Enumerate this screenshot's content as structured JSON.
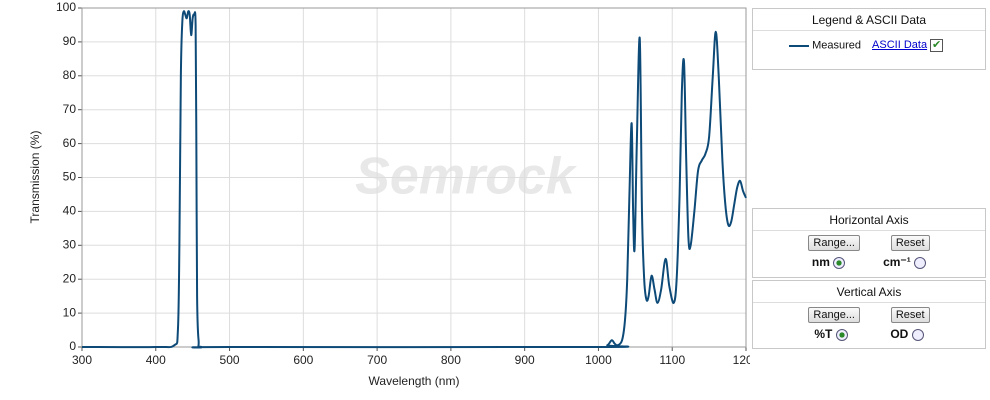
{
  "chart_data": {
    "type": "line",
    "x_label": "Wavelength (nm)",
    "y_label": "Transmission (%)",
    "watermark": "Semrock",
    "x": [
      300,
      400,
      425,
      430,
      432,
      434,
      436,
      438,
      440,
      442,
      444,
      446,
      448,
      450,
      452,
      454,
      455,
      456,
      458,
      462,
      500,
      1000,
      1012,
      1018,
      1022,
      1026,
      1032,
      1036,
      1039,
      1042,
      1045,
      1047,
      1049,
      1052,
      1056,
      1059,
      1062,
      1065,
      1068,
      1072,
      1076,
      1080,
      1085,
      1091,
      1096,
      1102,
      1106,
      1110,
      1113,
      1116,
      1119,
      1122,
      1125,
      1130,
      1135,
      1140,
      1145,
      1150,
      1155,
      1159,
      1163,
      1168,
      1172,
      1176,
      1180,
      1184,
      1188,
      1192,
      1196,
      1200
    ],
    "series": [
      {
        "name": "Measured",
        "color": "#0d4a78",
        "values": [
          0,
          0,
          0.5,
          5,
          30,
          80,
          96,
          99,
          98,
          97,
          99,
          98,
          92,
          97,
          98,
          95,
          60,
          15,
          2,
          0,
          0,
          0,
          0.5,
          2,
          1,
          0.5,
          2,
          8,
          20,
          45,
          66,
          40,
          29,
          60,
          91,
          40,
          20,
          14,
          15,
          21,
          17,
          13,
          17,
          26,
          18,
          13,
          20,
          45,
          75,
          84,
          55,
          32,
          30,
          40,
          52,
          55,
          57,
          62,
          80,
          93,
          80,
          55,
          42,
          36,
          37,
          42,
          47,
          49,
          46,
          44
        ]
      }
    ],
    "xlim": [
      300,
      1200
    ],
    "xticks": [
      300,
      400,
      500,
      600,
      700,
      800,
      900,
      1000,
      1100,
      1200
    ],
    "ylim": [
      0,
      100
    ],
    "yticks": [
      0,
      10,
      20,
      30,
      40,
      50,
      60,
      70,
      80,
      90,
      100
    ],
    "grid": true
  },
  "panels": {
    "legend": {
      "title": "Legend & ASCII Data",
      "link": "ASCII Data"
    },
    "horizontal": {
      "title": "Horizontal Axis",
      "range": "Range...",
      "reset": "Reset",
      "option1": "nm",
      "option2": "cm⁻¹"
    },
    "vertical": {
      "title": "Vertical  Axis",
      "range": "Range...",
      "reset": "Reset",
      "option1": "%T",
      "option2": "OD"
    }
  }
}
